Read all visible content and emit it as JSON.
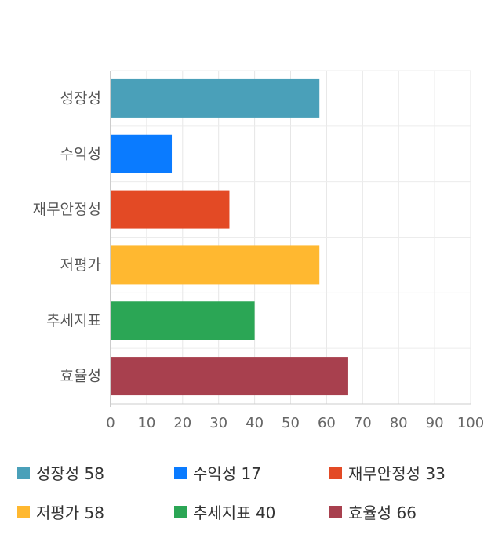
{
  "chart_data": {
    "type": "bar",
    "orientation": "horizontal",
    "categories": [
      "성장성",
      "수익성",
      "재무안정성",
      "저평가",
      "추세지표",
      "효율성"
    ],
    "values": [
      58,
      17,
      33,
      58,
      40,
      66
    ],
    "colors": [
      "#4aa0b9",
      "#0a7bff",
      "#e34a25",
      "#ffb830",
      "#2ba655",
      "#a8404e"
    ],
    "xlim": [
      0,
      100
    ],
    "xticks": [
      "0",
      "10",
      "20",
      "30",
      "40",
      "50",
      "60",
      "70",
      "80",
      "90",
      "100"
    ],
    "grid": true,
    "legend": [
      {
        "label": "성장성 58",
        "color": "#4aa0b9"
      },
      {
        "label": "수익성 17",
        "color": "#0a7bff"
      },
      {
        "label": "재무안정성 33",
        "color": "#e34a25"
      },
      {
        "label": "저평가 58",
        "color": "#ffb830"
      },
      {
        "label": "추세지표 40",
        "color": "#2ba655"
      },
      {
        "label": "효율성 66",
        "color": "#a8404e"
      }
    ],
    "legend_position": "bottom"
  }
}
